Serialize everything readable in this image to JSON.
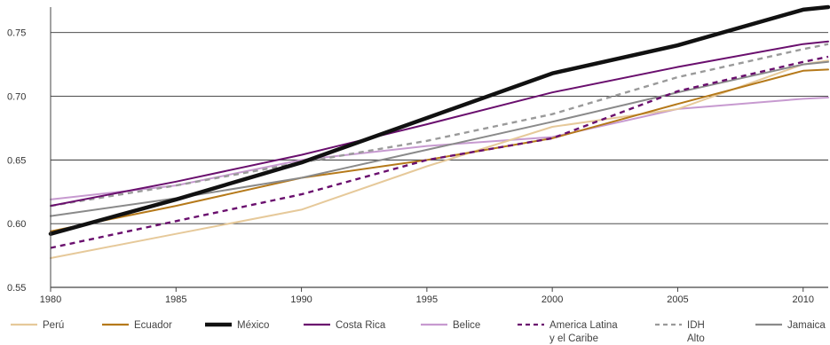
{
  "chart_data": {
    "type": "line",
    "title": "",
    "xlabel": "",
    "ylabel": "",
    "xlim": [
      1980,
      2011
    ],
    "ylim": [
      0.55,
      0.77
    ],
    "x_ticks": [
      "1980",
      "1985",
      "1990",
      "1995",
      "2000",
      "2005",
      "2010"
    ],
    "y_ticks": [
      "0.55",
      "0.60",
      "0.65",
      "0.70",
      "0.75"
    ],
    "grid": "horizontal",
    "legend_position": "bottom",
    "series": [
      {
        "name": "Perú",
        "color": "#e6c99a",
        "dash": "solid",
        "weight": "thin",
        "points": [
          [
            1980,
            0.573
          ],
          [
            1985,
            0.592
          ],
          [
            1990,
            0.611
          ],
          [
            1995,
            0.645
          ],
          [
            2000,
            0.676
          ],
          [
            2005,
            0.69
          ],
          [
            2010,
            0.725
          ],
          [
            2011,
            0.728
          ]
        ]
      },
      {
        "name": "Ecuador",
        "color": "#b5791a",
        "dash": "solid",
        "weight": "thin",
        "points": [
          [
            1980,
            0.594
          ],
          [
            1985,
            0.614
          ],
          [
            1990,
            0.636
          ],
          [
            1995,
            0.65
          ],
          [
            2000,
            0.667
          ],
          [
            2005,
            0.694
          ],
          [
            2010,
            0.72
          ],
          [
            2011,
            0.721
          ]
        ]
      },
      {
        "name": "México",
        "color": "#111111",
        "dash": "solid",
        "weight": "bold",
        "points": [
          [
            1980,
            0.592
          ],
          [
            1985,
            0.619
          ],
          [
            1990,
            0.648
          ],
          [
            1995,
            0.683
          ],
          [
            2000,
            0.718
          ],
          [
            2005,
            0.74
          ],
          [
            2010,
            0.768
          ],
          [
            2011,
            0.77
          ]
        ]
      },
      {
        "name": "Costa Rica",
        "color": "#6a0f6e",
        "dash": "solid",
        "weight": "thin",
        "points": [
          [
            1980,
            0.614
          ],
          [
            1985,
            0.633
          ],
          [
            1990,
            0.654
          ],
          [
            1995,
            0.678
          ],
          [
            2000,
            0.703
          ],
          [
            2005,
            0.723
          ],
          [
            2010,
            0.741
          ],
          [
            2011,
            0.743
          ]
        ]
      },
      {
        "name": "Belice",
        "color": "#c79ad0",
        "dash": "solid",
        "weight": "thin",
        "points": [
          [
            1980,
            0.619
          ],
          [
            1985,
            0.63
          ],
          [
            1990,
            0.65
          ],
          [
            1995,
            0.661
          ],
          [
            2000,
            0.668
          ],
          [
            2005,
            0.69
          ],
          [
            2010,
            0.698
          ],
          [
            2011,
            0.699
          ]
        ]
      },
      {
        "name": "America Latina\ny el Caribe",
        "color": "#6a0f6e",
        "dash": "dashed",
        "weight": "medium",
        "points": [
          [
            1980,
            0.581
          ],
          [
            1985,
            0.602
          ],
          [
            1990,
            0.623
          ],
          [
            1995,
            0.65
          ],
          [
            2000,
            0.667
          ],
          [
            2005,
            0.704
          ],
          [
            2010,
            0.727
          ],
          [
            2011,
            0.731
          ]
        ]
      },
      {
        "name": "IDH\nAlto",
        "color": "#9a9a9a",
        "dash": "dashed",
        "weight": "medium",
        "points": [
          [
            1980,
            0.614
          ],
          [
            1985,
            0.63
          ],
          [
            1990,
            0.648
          ],
          [
            1995,
            0.665
          ],
          [
            2000,
            0.686
          ],
          [
            2005,
            0.715
          ],
          [
            2010,
            0.737
          ],
          [
            2011,
            0.741
          ]
        ]
      },
      {
        "name": "Jamaica",
        "color": "#8a8a8a",
        "dash": "solid",
        "weight": "thin",
        "points": [
          [
            1980,
            0.606
          ],
          [
            1985,
            0.62
          ],
          [
            1990,
            0.636
          ],
          [
            1995,
            0.658
          ],
          [
            2000,
            0.68
          ],
          [
            2005,
            0.703
          ],
          [
            2010,
            0.725
          ],
          [
            2011,
            0.727
          ]
        ]
      }
    ]
  }
}
